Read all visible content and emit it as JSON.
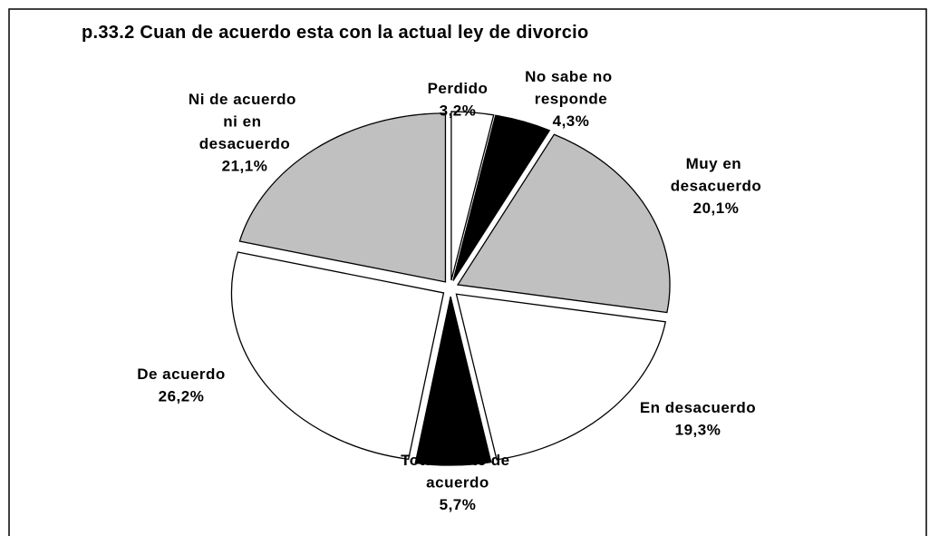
{
  "chart_data": {
    "type": "pie",
    "title": "p.33.2 Cuan de acuerdo esta con la actual ley de divorcio",
    "categories": [
      "Perdido",
      "No sabe no responde",
      "Muy en desacuerdo",
      "En desacuerdo",
      "Totalmente de acuerdo",
      "De acuerdo",
      "Ni de acuerdo ni en desacuerdo"
    ],
    "values": [
      3.2,
      4.3,
      20.1,
      19.3,
      5.7,
      26.2,
      21.1
    ],
    "value_labels": [
      "3,2%",
      "4,3%",
      "20,1%",
      "19,3%",
      "5,7%",
      "26,2%",
      "21,1%"
    ],
    "colors": [
      "#ffffff",
      "#000000",
      "#c0c0c0",
      "#ffffff",
      "#000000",
      "#ffffff",
      "#c0c0c0"
    ]
  }
}
